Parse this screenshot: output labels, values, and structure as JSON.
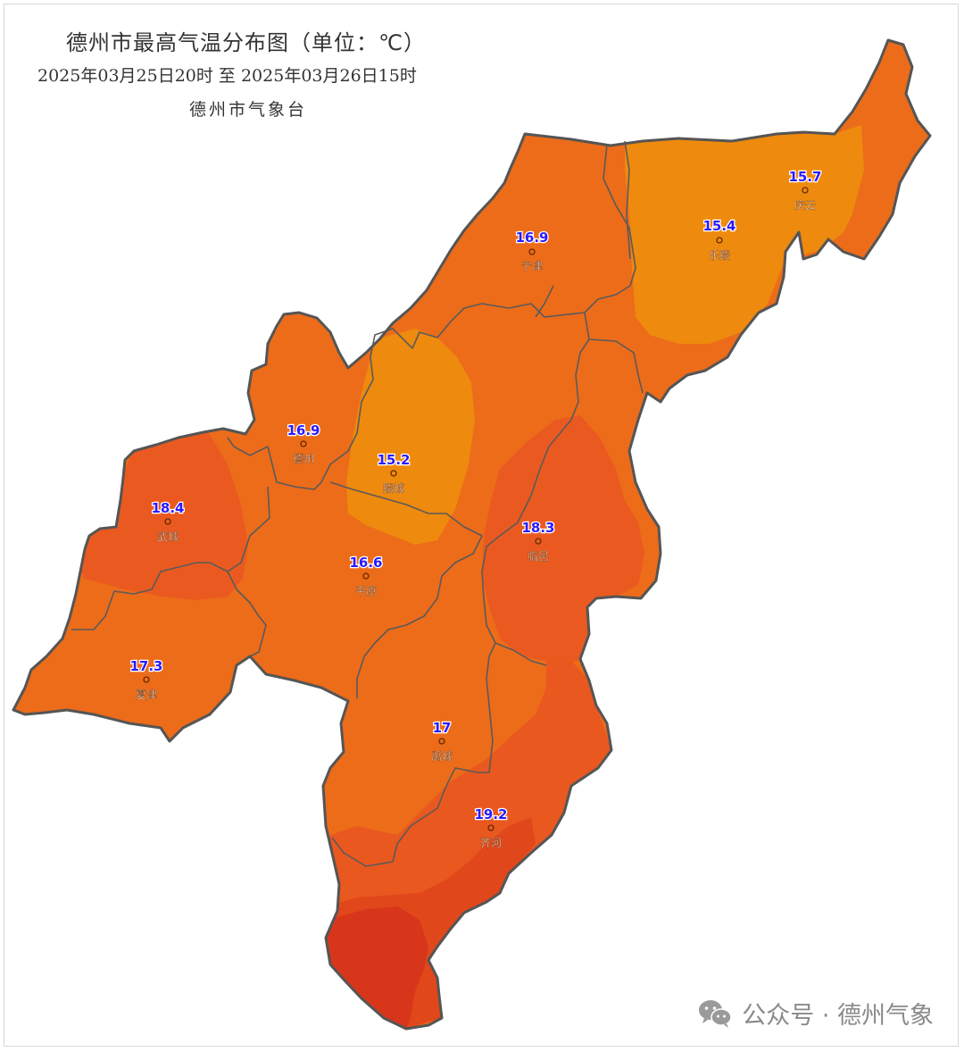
{
  "header": {
    "title": "德州市最高气温分布图（单位：℃）",
    "subtitle": "2025年03月25日20时   至   2025年03月26日15时",
    "agency": "德州市气象台"
  },
  "colors": {
    "band_15": "#ee8a0d",
    "band_16": "#ec6c1a",
    "band_17": "#ee6a1c",
    "band_18": "#ea5a20",
    "band_19": "#e04c1c",
    "band_20": "#d8361a",
    "boundary": "#555555",
    "value_text": "#2a1aff"
  },
  "stations": [
    {
      "id": "qingyun",
      "name": "庆云",
      "value": "15.7"
    },
    {
      "id": "leling",
      "name": "乐陵",
      "value": "15.4"
    },
    {
      "id": "ningjin",
      "name": "宁津",
      "value": "16.9"
    },
    {
      "id": "dezhou",
      "name": "德州",
      "value": "16.9"
    },
    {
      "id": "lingcheng",
      "name": "陵城",
      "value": "15.2"
    },
    {
      "id": "wucheng",
      "name": "武城",
      "value": "18.4"
    },
    {
      "id": "linyi",
      "name": "临邑",
      "value": "18.3"
    },
    {
      "id": "pingyuan",
      "name": "平原",
      "value": "16.6"
    },
    {
      "id": "xiajin",
      "name": "夏津",
      "value": "17.3"
    },
    {
      "id": "yucheng",
      "name": "禹城",
      "value": "17"
    },
    {
      "id": "qihe",
      "name": "齐河",
      "value": "19.2"
    }
  ],
  "watermark": {
    "icon": "wechat-icon",
    "text": "公众号 · 德州气象"
  }
}
